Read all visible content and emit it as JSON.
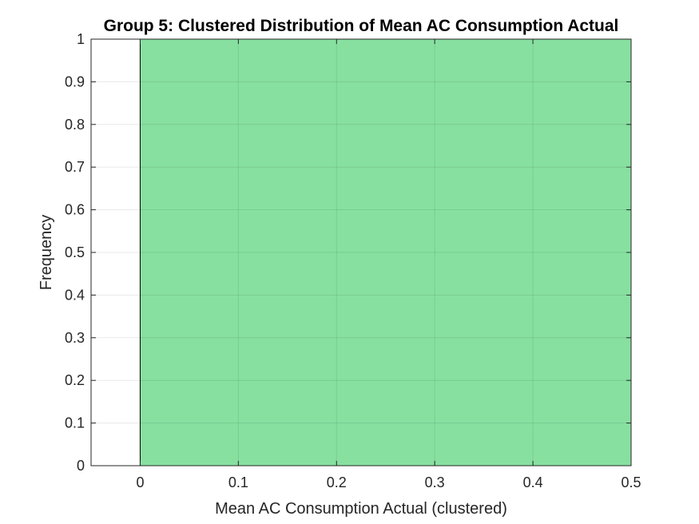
{
  "chart_data": {
    "type": "bar",
    "title": "Group 5: Clustered Distribution of Mean AC Consumption Actual",
    "xlabel": "Mean AC Consumption Actual (clustered)",
    "ylabel": "Frequency",
    "xlim": [
      -0.05,
      0.5
    ],
    "ylim": [
      0,
      1
    ],
    "xticks": [
      "0",
      "0.1",
      "0.2",
      "0.3",
      "0.4",
      "0.5"
    ],
    "yticks": [
      "0",
      "0.1",
      "0.2",
      "0.3",
      "0.4",
      "0.5",
      "0.6",
      "0.7",
      "0.8",
      "0.9",
      "1"
    ],
    "grid": true,
    "bars": [
      {
        "x_start": 0,
        "x_end": 0.5,
        "value": 1
      }
    ],
    "colors": {
      "bar_fill": "#87E0A0",
      "bar_edge": "#000000",
      "grid": "#dedede",
      "axis": "#262626"
    }
  }
}
